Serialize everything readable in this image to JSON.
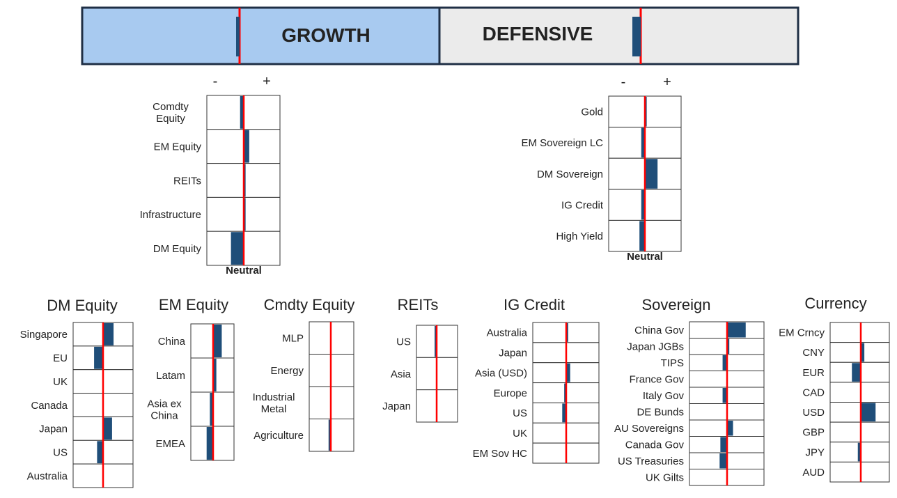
{
  "colors": {
    "bar": "#1f4e79",
    "neutral": "#ff0000",
    "growth_bg": "#a8caf0",
    "defensive_bg": "#ebebeb",
    "border": "#1f2f45",
    "text": "#222222"
  },
  "header": {
    "growth_label": "GROWTH",
    "defensive_label": "DEFENSIVE",
    "growth_marker": -0.05,
    "defensive_marker": -0.12
  },
  "chart_data": [
    {
      "type": "bar",
      "title": "",
      "minus_label": "-",
      "plus_label": "+",
      "neutral_label": "Neutral",
      "categories": [
        "Comdty Equity",
        "EM Equity",
        "REITs",
        "Infrastructure",
        "DM Equity"
      ],
      "values": [
        -0.1,
        0.15,
        0.05,
        0.05,
        -0.35
      ]
    },
    {
      "type": "bar",
      "title": "",
      "minus_label": "-",
      "plus_label": "+",
      "neutral_label": "Neutral",
      "categories": [
        "Gold",
        "EM Sovereign LC",
        "DM Sovereign",
        "IG Credit",
        "High Yield"
      ],
      "values": [
        0.05,
        -0.1,
        0.35,
        -0.1,
        -0.15
      ]
    },
    {
      "type": "bar",
      "title": "DM Equity",
      "categories": [
        "Singapore",
        "EU",
        "UK",
        "Canada",
        "Japan",
        "US",
        "Australia"
      ],
      "values": [
        0.35,
        -0.3,
        0,
        0,
        0.3,
        -0.2,
        0
      ]
    },
    {
      "type": "bar",
      "title": "EM Equity",
      "categories": [
        "China",
        "Latam",
        "Asia ex China",
        "EMEA"
      ],
      "values": [
        0.4,
        0.15,
        -0.15,
        -0.3
      ]
    },
    {
      "type": "bar",
      "title": "Cmdty Equity",
      "categories": [
        "MLP",
        "Energy",
        "Industrial Metal",
        "Agriculture"
      ],
      "values": [
        0.03,
        0.03,
        0.03,
        -0.1
      ]
    },
    {
      "type": "bar",
      "title": "REITs",
      "categories": [
        "US",
        "Asia",
        "Japan"
      ],
      "values": [
        -0.1,
        0,
        0
      ]
    },
    {
      "type": "bar",
      "title": "IG Credit",
      "categories": [
        "Australia",
        "Japan",
        "Asia (USD)",
        "Europe",
        "US",
        "UK",
        "EM Sov HC"
      ],
      "values": [
        0.06,
        0,
        0.12,
        -0.06,
        -0.12,
        0,
        0
      ]
    },
    {
      "type": "bar",
      "title": "Sovereign",
      "categories": [
        "China Gov",
        "Japan JGBs",
        "TIPS",
        "France Gov",
        "Italy Gov",
        "DE Bunds",
        "AU Sovereigns",
        "Canada Gov",
        "US Treasuries",
        "UK Gilts"
      ],
      "values": [
        0.5,
        0.06,
        -0.12,
        0,
        -0.12,
        0,
        0.16,
        -0.18,
        -0.2,
        0
      ]
    },
    {
      "type": "bar",
      "title": "Currency",
      "categories": [
        "EM Crncy",
        "CNY",
        "EUR",
        "CAD",
        "USD",
        "GBP",
        "JPY",
        "AUD"
      ],
      "values": [
        0,
        0.12,
        -0.3,
        0,
        0.5,
        0,
        -0.1,
        0
      ]
    }
  ]
}
